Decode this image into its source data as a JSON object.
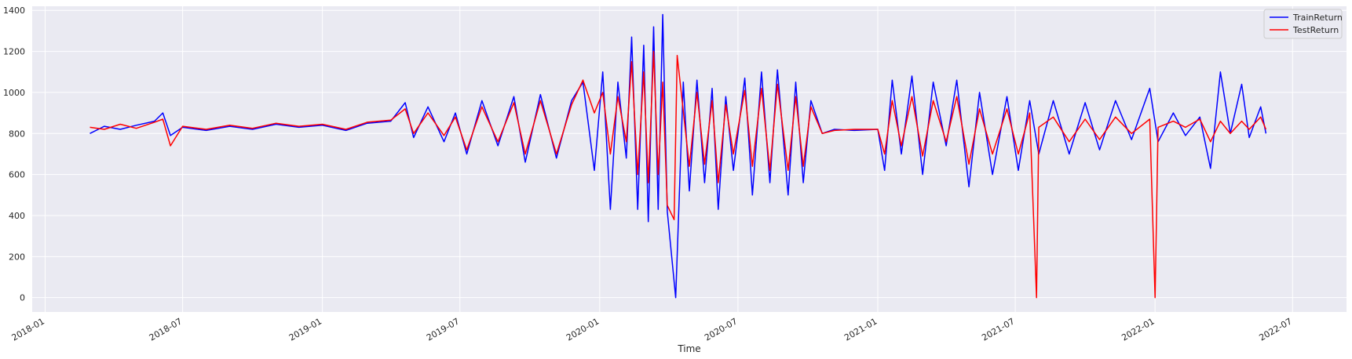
{
  "chart_data": {
    "type": "line",
    "title": "",
    "xlabel": "Time",
    "ylabel": "",
    "x_type": "date",
    "xlim": [
      "2017-12-15",
      "2022-09-10"
    ],
    "ylim": [
      -70,
      1420
    ],
    "grid": true,
    "legend_position": "top-right",
    "x_ticks": [
      "2018-01",
      "2018-07",
      "2019-01",
      "2019-07",
      "2020-01",
      "2020-07",
      "2021-01",
      "2021-07",
      "2022-01",
      "2022-07"
    ],
    "x_tick_dates": [
      "2018-01-01",
      "2018-07-01",
      "2019-01-01",
      "2019-07-01",
      "2020-01-01",
      "2020-07-01",
      "2021-01-01",
      "2021-07-01",
      "2022-01-01",
      "2022-07-01"
    ],
    "y_ticks": [
      0,
      200,
      400,
      600,
      800,
      1000,
      1200,
      1400
    ],
    "series": [
      {
        "name": "TrainReturn",
        "color": "#0000ff",
        "points": [
          [
            "2018-03-01",
            800
          ],
          [
            "2018-03-20",
            835
          ],
          [
            "2018-04-10",
            820
          ],
          [
            "2018-05-01",
            840
          ],
          [
            "2018-05-25",
            860
          ],
          [
            "2018-06-05",
            900
          ],
          [
            "2018-06-15",
            790
          ],
          [
            "2018-07-01",
            830
          ],
          [
            "2018-08-01",
            815
          ],
          [
            "2018-09-01",
            835
          ],
          [
            "2018-10-01",
            820
          ],
          [
            "2018-11-01",
            845
          ],
          [
            "2018-12-01",
            830
          ],
          [
            "2019-01-01",
            840
          ],
          [
            "2019-02-01",
            815
          ],
          [
            "2019-03-01",
            850
          ],
          [
            "2019-04-01",
            860
          ],
          [
            "2019-04-20",
            950
          ],
          [
            "2019-05-01",
            780
          ],
          [
            "2019-05-20",
            930
          ],
          [
            "2019-06-10",
            760
          ],
          [
            "2019-06-25",
            900
          ],
          [
            "2019-07-10",
            700
          ],
          [
            "2019-07-30",
            960
          ],
          [
            "2019-08-20",
            740
          ],
          [
            "2019-09-10",
            980
          ],
          [
            "2019-09-25",
            660
          ],
          [
            "2019-10-15",
            990
          ],
          [
            "2019-11-05",
            680
          ],
          [
            "2019-11-25",
            960
          ],
          [
            "2019-12-10",
            1050
          ],
          [
            "2019-12-25",
            620
          ],
          [
            "2020-01-05",
            1100
          ],
          [
            "2020-01-15",
            430
          ],
          [
            "2020-01-25",
            1050
          ],
          [
            "2020-02-05",
            680
          ],
          [
            "2020-02-12",
            1270
          ],
          [
            "2020-02-20",
            430
          ],
          [
            "2020-02-28",
            1230
          ],
          [
            "2020-03-05",
            370
          ],
          [
            "2020-03-12",
            1320
          ],
          [
            "2020-03-18",
            430
          ],
          [
            "2020-03-24",
            1380
          ],
          [
            "2020-03-30",
            420
          ],
          [
            "2020-04-10",
            0
          ],
          [
            "2020-04-20",
            1050
          ],
          [
            "2020-04-28",
            520
          ],
          [
            "2020-05-08",
            1060
          ],
          [
            "2020-05-18",
            560
          ],
          [
            "2020-05-28",
            1020
          ],
          [
            "2020-06-05",
            430
          ],
          [
            "2020-06-15",
            980
          ],
          [
            "2020-06-25",
            620
          ],
          [
            "2020-07-10",
            1070
          ],
          [
            "2020-07-20",
            500
          ],
          [
            "2020-08-01",
            1100
          ],
          [
            "2020-08-12",
            560
          ],
          [
            "2020-08-22",
            1110
          ],
          [
            "2020-09-05",
            500
          ],
          [
            "2020-09-15",
            1050
          ],
          [
            "2020-09-25",
            560
          ],
          [
            "2020-10-05",
            960
          ],
          [
            "2020-10-20",
            800
          ],
          [
            "2020-11-05",
            820
          ],
          [
            "2020-12-01",
            815
          ],
          [
            "2021-01-01",
            820
          ],
          [
            "2021-01-10",
            620
          ],
          [
            "2021-01-20",
            1060
          ],
          [
            "2021-02-01",
            700
          ],
          [
            "2021-02-15",
            1080
          ],
          [
            "2021-03-01",
            600
          ],
          [
            "2021-03-15",
            1050
          ],
          [
            "2021-04-01",
            740
          ],
          [
            "2021-04-15",
            1060
          ],
          [
            "2021-05-01",
            540
          ],
          [
            "2021-05-15",
            1000
          ],
          [
            "2021-06-01",
            600
          ],
          [
            "2021-06-20",
            980
          ],
          [
            "2021-07-05",
            620
          ],
          [
            "2021-07-20",
            960
          ],
          [
            "2021-08-01",
            700
          ],
          [
            "2021-08-20",
            960
          ],
          [
            "2021-09-10",
            700
          ],
          [
            "2021-10-01",
            950
          ],
          [
            "2021-10-20",
            720
          ],
          [
            "2021-11-10",
            960
          ],
          [
            "2021-12-01",
            770
          ],
          [
            "2021-12-25",
            1020
          ],
          [
            "2022-01-05",
            760
          ],
          [
            "2022-01-25",
            900
          ],
          [
            "2022-02-10",
            790
          ],
          [
            "2022-03-01",
            880
          ],
          [
            "2022-03-15",
            630
          ],
          [
            "2022-03-28",
            1100
          ],
          [
            "2022-04-10",
            800
          ],
          [
            "2022-04-25",
            1040
          ],
          [
            "2022-05-05",
            780
          ],
          [
            "2022-05-20",
            930
          ],
          [
            "2022-05-27",
            800
          ]
        ]
      },
      {
        "name": "TestReturn",
        "color": "#ff0000",
        "points": [
          [
            "2018-03-01",
            830
          ],
          [
            "2018-03-20",
            820
          ],
          [
            "2018-04-10",
            845
          ],
          [
            "2018-05-01",
            825
          ],
          [
            "2018-05-25",
            855
          ],
          [
            "2018-06-05",
            870
          ],
          [
            "2018-06-15",
            740
          ],
          [
            "2018-07-01",
            835
          ],
          [
            "2018-08-01",
            820
          ],
          [
            "2018-09-01",
            840
          ],
          [
            "2018-10-01",
            825
          ],
          [
            "2018-11-01",
            850
          ],
          [
            "2018-12-01",
            835
          ],
          [
            "2019-01-01",
            845
          ],
          [
            "2019-02-01",
            820
          ],
          [
            "2019-03-01",
            855
          ],
          [
            "2019-04-01",
            865
          ],
          [
            "2019-04-20",
            920
          ],
          [
            "2019-05-01",
            800
          ],
          [
            "2019-05-20",
            900
          ],
          [
            "2019-06-10",
            790
          ],
          [
            "2019-06-25",
            880
          ],
          [
            "2019-07-10",
            720
          ],
          [
            "2019-07-30",
            930
          ],
          [
            "2019-08-20",
            760
          ],
          [
            "2019-09-10",
            950
          ],
          [
            "2019-09-25",
            700
          ],
          [
            "2019-10-15",
            960
          ],
          [
            "2019-11-05",
            700
          ],
          [
            "2019-11-25",
            940
          ],
          [
            "2019-12-10",
            1060
          ],
          [
            "2019-12-25",
            900
          ],
          [
            "2020-01-05",
            1000
          ],
          [
            "2020-01-15",
            700
          ],
          [
            "2020-01-25",
            980
          ],
          [
            "2020-02-05",
            760
          ],
          [
            "2020-02-12",
            1150
          ],
          [
            "2020-02-20",
            600
          ],
          [
            "2020-02-28",
            1100
          ],
          [
            "2020-03-05",
            560
          ],
          [
            "2020-03-12",
            1200
          ],
          [
            "2020-03-18",
            600
          ],
          [
            "2020-03-24",
            1050
          ],
          [
            "2020-03-30",
            450
          ],
          [
            "2020-04-08",
            380
          ],
          [
            "2020-04-12",
            1180
          ],
          [
            "2020-04-28",
            640
          ],
          [
            "2020-05-08",
            1000
          ],
          [
            "2020-05-18",
            650
          ],
          [
            "2020-05-28",
            960
          ],
          [
            "2020-06-05",
            560
          ],
          [
            "2020-06-15",
            940
          ],
          [
            "2020-06-25",
            700
          ],
          [
            "2020-07-10",
            1010
          ],
          [
            "2020-07-20",
            640
          ],
          [
            "2020-08-01",
            1020
          ],
          [
            "2020-08-12",
            620
          ],
          [
            "2020-08-22",
            1040
          ],
          [
            "2020-09-05",
            620
          ],
          [
            "2020-09-15",
            980
          ],
          [
            "2020-09-25",
            640
          ],
          [
            "2020-10-05",
            930
          ],
          [
            "2020-10-20",
            800
          ],
          [
            "2020-11-05",
            815
          ],
          [
            "2020-12-01",
            820
          ],
          [
            "2021-01-01",
            820
          ],
          [
            "2021-01-10",
            700
          ],
          [
            "2021-01-20",
            960
          ],
          [
            "2021-02-01",
            740
          ],
          [
            "2021-02-15",
            980
          ],
          [
            "2021-03-01",
            690
          ],
          [
            "2021-03-15",
            960
          ],
          [
            "2021-04-01",
            760
          ],
          [
            "2021-04-15",
            980
          ],
          [
            "2021-05-01",
            650
          ],
          [
            "2021-05-15",
            920
          ],
          [
            "2021-06-01",
            700
          ],
          [
            "2021-06-20",
            920
          ],
          [
            "2021-07-05",
            700
          ],
          [
            "2021-07-20",
            900
          ],
          [
            "2021-07-29",
            0
          ],
          [
            "2021-08-01",
            830
          ],
          [
            "2021-08-20",
            880
          ],
          [
            "2021-09-10",
            760
          ],
          [
            "2021-10-01",
            870
          ],
          [
            "2021-10-20",
            770
          ],
          [
            "2021-11-10",
            880
          ],
          [
            "2021-12-01",
            800
          ],
          [
            "2021-12-25",
            870
          ],
          [
            "2022-01-01",
            0
          ],
          [
            "2022-01-05",
            830
          ],
          [
            "2022-01-25",
            860
          ],
          [
            "2022-02-10",
            830
          ],
          [
            "2022-03-01",
            870
          ],
          [
            "2022-03-15",
            760
          ],
          [
            "2022-03-28",
            860
          ],
          [
            "2022-04-10",
            800
          ],
          [
            "2022-04-25",
            860
          ],
          [
            "2022-05-05",
            820
          ],
          [
            "2022-05-20",
            880
          ],
          [
            "2022-05-27",
            820
          ]
        ]
      }
    ]
  }
}
